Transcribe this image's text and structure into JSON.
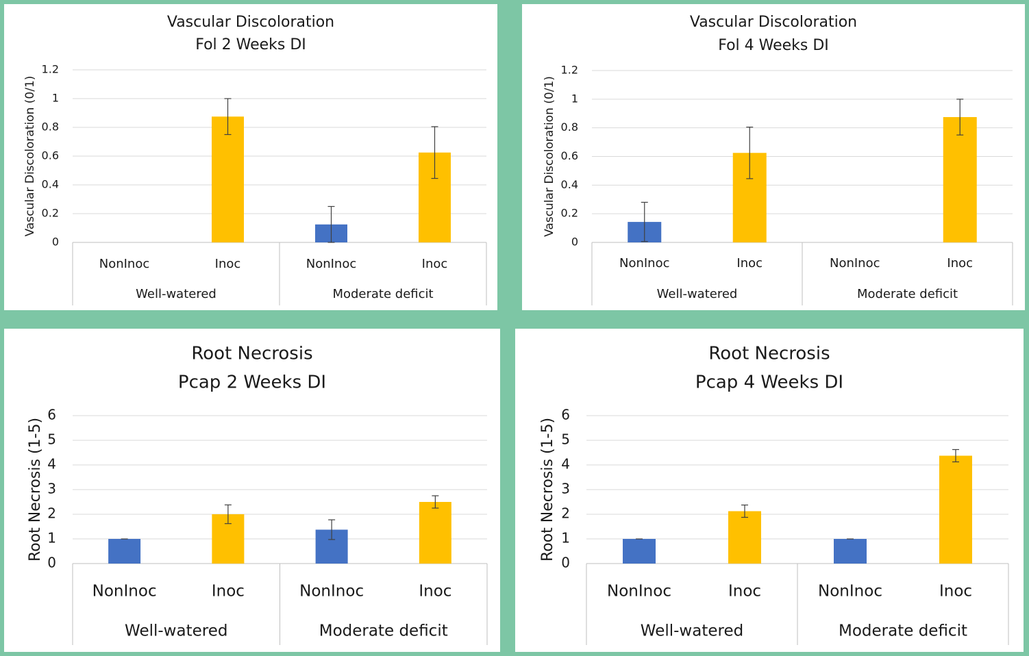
{
  "colors": {
    "background": "#7dc6a5",
    "nonInoc": "#4472c4",
    "inoc": "#ffc000",
    "grid": "#d9d9d9",
    "axis_line": "#bfbfbf",
    "error_bar": "#404040"
  },
  "chart_data": [
    {
      "type": "bar",
      "title_lines": [
        "Vascular Discoloration",
        "Fol 2 Weeks DI"
      ],
      "ylabel": "Vascular Discoloration (0/1)",
      "xlabel": "",
      "ylim": [
        0,
        1.2
      ],
      "yticks": [
        "0",
        "0.2",
        "0.4",
        "0.6",
        "0.8",
        "1",
        "1.2"
      ],
      "grid": true,
      "legend": "none",
      "groups": [
        "Well-watered",
        "Moderate deficit"
      ],
      "categories": [
        "NonInoc",
        "Inoc",
        "NonInoc",
        "Inoc"
      ],
      "values": [
        0,
        0.875,
        0.125,
        0.625
      ],
      "errors": [
        0,
        0.125,
        0.125,
        0.18
      ],
      "bar_colors": [
        "nonInoc",
        "inoc",
        "nonInoc",
        "inoc"
      ]
    },
    {
      "type": "bar",
      "title_lines": [
        "Vascular Discoloration",
        "Fol 4 Weeks DI"
      ],
      "ylabel": "Vascular Discoloration (0/1)",
      "xlabel": "",
      "ylim": [
        0,
        1.2
      ],
      "yticks": [
        "0",
        "0.2",
        "0.4",
        "0.6",
        "0.8",
        "1",
        "1.2"
      ],
      "grid": true,
      "legend": "none",
      "groups": [
        "Well-watered",
        "Moderate deficit"
      ],
      "categories": [
        "NonInoc",
        "Inoc",
        "NonInoc",
        "Inoc"
      ],
      "values": [
        0.143,
        0.625,
        0,
        0.875
      ],
      "errors": [
        0.137,
        0.18,
        0,
        0.125
      ],
      "bar_colors": [
        "nonInoc",
        "inoc",
        "nonInoc",
        "inoc"
      ]
    },
    {
      "type": "bar",
      "title_lines": [
        "Root Necrosis",
        "Pcap 2 Weeks DI"
      ],
      "ylabel": "Root Necrosis (1-5)",
      "xlabel": "",
      "ylim": [
        0,
        6
      ],
      "yticks": [
        "0",
        "1",
        "2",
        "3",
        "4",
        "5",
        "6"
      ],
      "grid": true,
      "legend": "none",
      "groups": [
        "Well-watered",
        "Moderate deficit"
      ],
      "categories": [
        "NonInoc",
        "Inoc",
        "NonInoc",
        "Inoc"
      ],
      "values": [
        1.0,
        2.0,
        1.375,
        2.5
      ],
      "errors": [
        0.0,
        0.38,
        0.4,
        0.25
      ],
      "bar_colors": [
        "nonInoc",
        "inoc",
        "nonInoc",
        "inoc"
      ]
    },
    {
      "type": "bar",
      "title_lines": [
        "Root Necrosis",
        "Pcap 4 Weeks DI"
      ],
      "ylabel": "Root Necrosis (1-5)",
      "xlabel": "",
      "ylim": [
        0,
        6
      ],
      "yticks": [
        "0",
        "1",
        "2",
        "3",
        "4",
        "5",
        "6"
      ],
      "grid": true,
      "legend": "none",
      "groups": [
        "Well-watered",
        "Moderate deficit"
      ],
      "categories": [
        "NonInoc",
        "Inoc",
        "NonInoc",
        "Inoc"
      ],
      "values": [
        1.0,
        2.125,
        1.0,
        4.375
      ],
      "errors": [
        0.0,
        0.25,
        0.0,
        0.25
      ],
      "bar_colors": [
        "nonInoc",
        "inoc",
        "nonInoc",
        "inoc"
      ]
    }
  ]
}
